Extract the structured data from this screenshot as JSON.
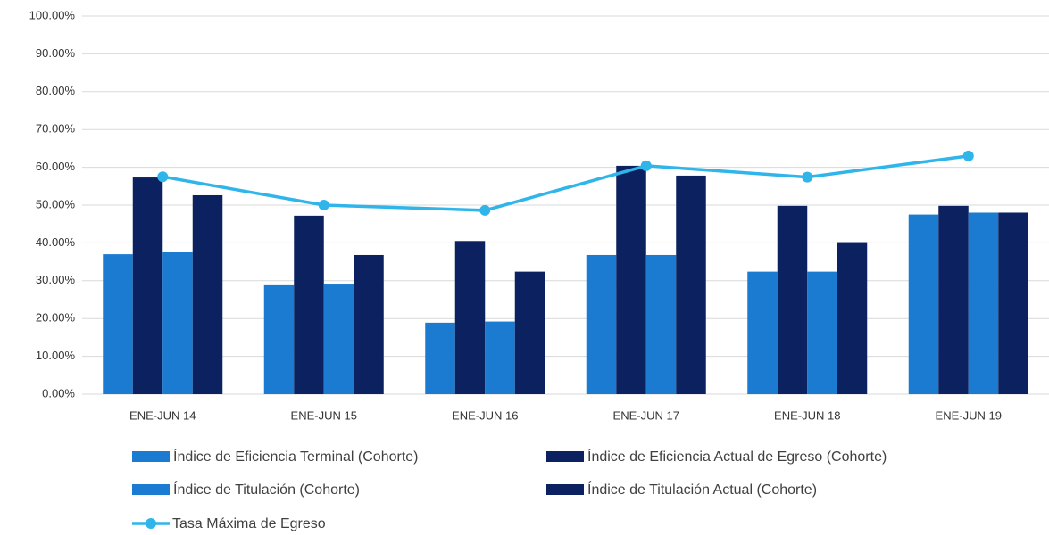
{
  "chart_data": {
    "type": "bar",
    "categories": [
      "ENE-JUN 14",
      "ENE-JUN 15",
      "ENE-JUN 16",
      "ENE-JUN 17",
      "ENE-JUN 18",
      "ENE-JUN 19"
    ],
    "series": [
      {
        "name": "Índice de Eficiencia Terminal (Cohorte)",
        "color": "#1a7bd0",
        "values": [
          37.0,
          28.8,
          18.9,
          36.8,
          32.4,
          47.5
        ]
      },
      {
        "name": "Índice de Eficiencia Actual de Egreso (Cohorte)",
        "color": "#0c215f",
        "values": [
          57.3,
          47.2,
          40.5,
          60.4,
          49.8,
          49.8
        ]
      },
      {
        "name": "Índice de Titulación (Cohorte)",
        "color": "#1a7bd0",
        "values": [
          37.5,
          29.0,
          19.2,
          36.8,
          32.4,
          48.0
        ]
      },
      {
        "name": "Índice de Titulación Actual (Cohorte)",
        "color": "#0c215f",
        "values": [
          52.6,
          36.8,
          32.4,
          57.8,
          40.2,
          48.0
        ]
      },
      {
        "name": "Tasa Máxima de Egreso",
        "color": "#2fb5ea",
        "type": "line",
        "values": [
          57.5,
          50.0,
          48.6,
          60.4,
          57.4,
          63.0
        ]
      }
    ],
    "ylim": [
      0,
      100
    ],
    "yticks": [
      {
        "value": 0,
        "label": "0.00%"
      },
      {
        "value": 10,
        "label": "10.00%"
      },
      {
        "value": 20,
        "label": "20.00%"
      },
      {
        "value": 30,
        "label": "30.00%"
      },
      {
        "value": 40,
        "label": "40.00%"
      },
      {
        "value": 50,
        "label": "50.00%"
      },
      {
        "value": 60,
        "label": "60.00%"
      },
      {
        "value": 70,
        "label": "70.00%"
      },
      {
        "value": 80,
        "label": "80.00%"
      },
      {
        "value": 90,
        "label": "90.00%"
      },
      {
        "value": 100,
        "label": "100.00%"
      }
    ],
    "grid": true,
    "legend": "bottom"
  }
}
